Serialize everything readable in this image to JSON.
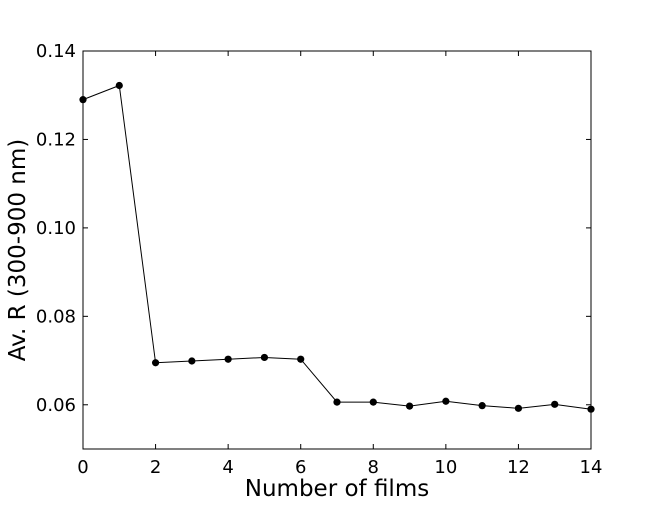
{
  "chart_data": {
    "type": "line",
    "title": "",
    "xlabel": "Number of films",
    "ylabel": "Av. R (300-900  nm)",
    "xlim": [
      0,
      14
    ],
    "ylim": [
      0.05,
      0.14
    ],
    "xticks": [
      0,
      2,
      4,
      6,
      8,
      10,
      12,
      14
    ],
    "xtick_labels": [
      "0",
      "2",
      "4",
      "6",
      "8",
      "10",
      "12",
      "14"
    ],
    "yticks": [
      0.06,
      0.08,
      0.1,
      0.12,
      0.14
    ],
    "ytick_labels": [
      "0.06",
      "0.08",
      "0.10",
      "0.12",
      "0.14"
    ],
    "grid": false,
    "legend": "none",
    "series": [
      {
        "color": "#000000",
        "marker": "circle",
        "x": [
          0,
          1,
          2,
          3,
          4,
          5,
          6,
          7,
          8,
          9,
          10,
          11,
          12,
          13,
          14
        ],
        "y": [
          0.129,
          0.1322,
          0.0695,
          0.0699,
          0.0703,
          0.0707,
          0.0703,
          0.0606,
          0.0606,
          0.0597,
          0.0608,
          0.0598,
          0.0592,
          0.0601,
          0.059
        ]
      }
    ]
  }
}
